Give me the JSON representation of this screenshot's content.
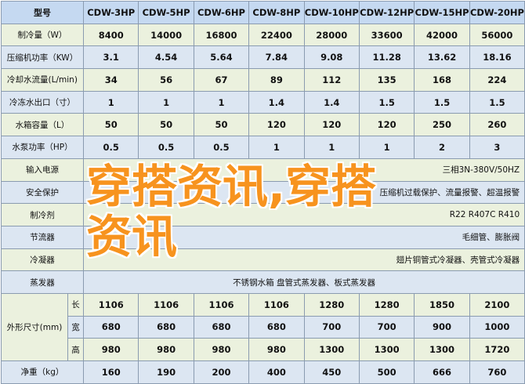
{
  "header": {
    "label": "型号",
    "models": [
      "CDW-3HP",
      "CDW-5HP",
      "CDW-6HP",
      "CDW-8HP",
      "CDW-10HP",
      "CDW-12HP",
      "CDW-15HP",
      "CDW-20HP"
    ]
  },
  "rows": [
    {
      "label": "制冷量（W）",
      "values": [
        "8400",
        "14000",
        "16800",
        "22400",
        "28000",
        "33600",
        "42000",
        "56000"
      ]
    },
    {
      "label": "压缩机功率（KW）",
      "values": [
        "3.1",
        "4.54",
        "5.64",
        "7.84",
        "9.08",
        "11.28",
        "13.62",
        "18.16"
      ]
    },
    {
      "label": "冷却水流量(L/min)",
      "values": [
        "34",
        "56",
        "67",
        "89",
        "112",
        "135",
        "168",
        "224"
      ]
    },
    {
      "label": "冷冻水出口（寸）",
      "values": [
        "1",
        "1",
        "1",
        "1.4",
        "1.4",
        "1.5",
        "1.5",
        "1.5"
      ]
    },
    {
      "label": "水箱容量（L）",
      "values": [
        "50",
        "50",
        "50",
        "120",
        "120",
        "120",
        "250",
        "260"
      ]
    },
    {
      "label": "水泵功率（HP）",
      "values": [
        "0.5",
        "0.5",
        "0.5",
        "1",
        "1",
        "1",
        "2",
        "3"
      ]
    }
  ],
  "spans": [
    {
      "label": "输入电源",
      "value": "三相3N-380V/50HZ"
    },
    {
      "label": "安全保护",
      "value": "压缩机过载保护、流量报警、超温报警"
    },
    {
      "label": "制冷剂",
      "value": "R22 R407C R410"
    },
    {
      "label": "节流器",
      "value": "毛细管、膨胀阀"
    },
    {
      "label": "冷凝器",
      "value": "翅片铜管式冷凝器、壳管式冷凝器"
    },
    {
      "label": "蒸发器",
      "value": "不锈钢水箱 盘管式蒸发器、板式蒸发器"
    }
  ],
  "dimensions": {
    "label": "外形尺寸(mm)",
    "rows": [
      {
        "sub": "长",
        "values": [
          "1106",
          "1106",
          "1106",
          "1106",
          "1280",
          "1280",
          "1850",
          "2100"
        ]
      },
      {
        "sub": "宽",
        "values": [
          "680",
          "680",
          "680",
          "680",
          "700",
          "700",
          "900",
          "1000"
        ]
      },
      {
        "sub": "高",
        "values": [
          "980",
          "980",
          "980",
          "980",
          "1300",
          "1300",
          "1300",
          "1720"
        ]
      }
    ]
  },
  "weight": {
    "label": "净重（kg）",
    "values": [
      "160",
      "190",
      "200",
      "400",
      "450",
      "500",
      "666",
      "760"
    ]
  },
  "watermark": {
    "line1": "穿搭资讯,穿搭",
    "line2": "资讯",
    "color": "#f7931e"
  }
}
